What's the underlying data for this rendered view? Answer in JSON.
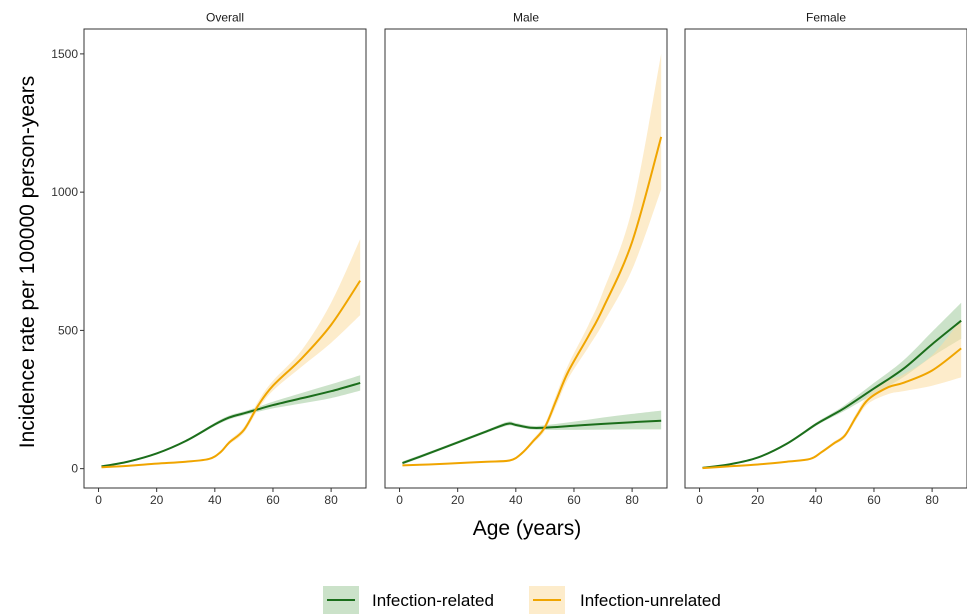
{
  "chart_data": {
    "type": "line",
    "xlabel": "Age (years)",
    "ylabel": "Incidence rate per 100000 person-years",
    "xlim": [
      -5,
      92
    ],
    "ylim": [
      -70,
      1590
    ],
    "x_ticks": [
      0,
      20,
      40,
      60,
      80
    ],
    "y_ticks": [
      0,
      500,
      1000,
      1500
    ],
    "grid": false,
    "legend_position": "bottom",
    "legend": [
      {
        "name": "Infection-related",
        "color": "#1b6e1b",
        "band_color": "#a9cfa5"
      },
      {
        "name": "Infection-unrelated",
        "color": "#f0a500",
        "band_color": "#fbdfa8"
      }
    ],
    "panels": [
      {
        "title": "Overall",
        "series": [
          {
            "name": "Infection-related",
            "x": [
              1,
              10,
              20,
              30,
              40,
              45,
              50,
              55,
              60,
              70,
              80,
              90
            ],
            "y": [
              8,
              25,
              55,
              100,
              160,
              185,
              200,
              215,
              230,
              255,
              280,
              310
            ],
            "lower": [
              7,
              23,
              52,
              96,
              154,
              178,
              193,
              206,
              218,
              236,
              255,
              282
            ],
            "upper": [
              9,
              27,
              58,
              104,
              166,
              192,
              207,
              224,
              242,
              274,
              305,
              338
            ]
          },
          {
            "name": "Infection-unrelated",
            "x": [
              1,
              10,
              20,
              30,
              38,
              42,
              45,
              50,
              55,
              60,
              70,
              80,
              90
            ],
            "y": [
              5,
              10,
              18,
              25,
              35,
              60,
              95,
              140,
              230,
              300,
              400,
              520,
              680
            ],
            "lower": [
              4,
              9,
              16,
              23,
              32,
              55,
              88,
              130,
              215,
              282,
              370,
              455,
              555
            ],
            "upper": [
              6,
              11,
              20,
              27,
              38,
              65,
              102,
              150,
              245,
              318,
              430,
              600,
              830
            ]
          }
        ]
      },
      {
        "title": "Male",
        "series": [
          {
            "name": "Infection-related",
            "x": [
              1,
              10,
              20,
              30,
              37,
              40,
              45,
              50,
              60,
              70,
              80,
              90
            ],
            "y": [
              20,
              55,
              95,
              135,
              162,
              158,
              148,
              148,
              155,
              162,
              168,
              173
            ],
            "lower": [
              15,
              50,
              90,
              130,
              155,
              152,
              142,
              140,
              140,
              141,
              142,
              142
            ],
            "upper": [
              26,
              60,
              100,
              140,
              169,
              165,
              155,
              157,
              170,
              185,
              198,
              210
            ]
          },
          {
            "name": "Infection-unrelated",
            "x": [
              1,
              10,
              20,
              30,
              38,
              42,
              46,
              50,
              54,
              58,
              65,
              70,
              80,
              90
            ],
            "y": [
              12,
              15,
              20,
              25,
              30,
              55,
              100,
              150,
              250,
              350,
              480,
              580,
              820,
              1200
            ],
            "lower": [
              10,
              13,
              18,
              23,
              27,
              50,
              92,
              138,
              230,
              325,
              440,
              525,
              720,
              1010
            ],
            "upper": [
              14,
              17,
              22,
              27,
              33,
              60,
              108,
              162,
              270,
              375,
              520,
              640,
              940,
              1500
            ]
          }
        ]
      },
      {
        "title": "Female",
        "series": [
          {
            "name": "Infection-related",
            "x": [
              1,
              10,
              20,
              30,
              40,
              45,
              50,
              60,
              70,
              80,
              90
            ],
            "y": [
              3,
              15,
              40,
              90,
              160,
              190,
              220,
              290,
              360,
              450,
              535
            ],
            "lower": [
              2,
              13,
              37,
              86,
              154,
              183,
              210,
              270,
              330,
              405,
              470
            ],
            "upper": [
              4,
              17,
              43,
              94,
              166,
              197,
              230,
              310,
              390,
              495,
              600
            ]
          },
          {
            "name": "Infection-unrelated",
            "x": [
              1,
              10,
              20,
              30,
              38,
              42,
              46,
              50,
              54,
              58,
              65,
              70,
              80,
              90
            ],
            "y": [
              2,
              8,
              15,
              25,
              35,
              60,
              90,
              120,
              190,
              250,
              295,
              310,
              355,
              435
            ],
            "lower": [
              1,
              7,
              14,
              23,
              32,
              55,
              84,
              112,
              178,
              235,
              270,
              280,
              300,
              330
            ],
            "upper": [
              3,
              9,
              16,
              27,
              38,
              65,
              96,
              128,
              202,
              265,
              320,
              340,
              410,
              540
            ]
          }
        ]
      }
    ]
  }
}
